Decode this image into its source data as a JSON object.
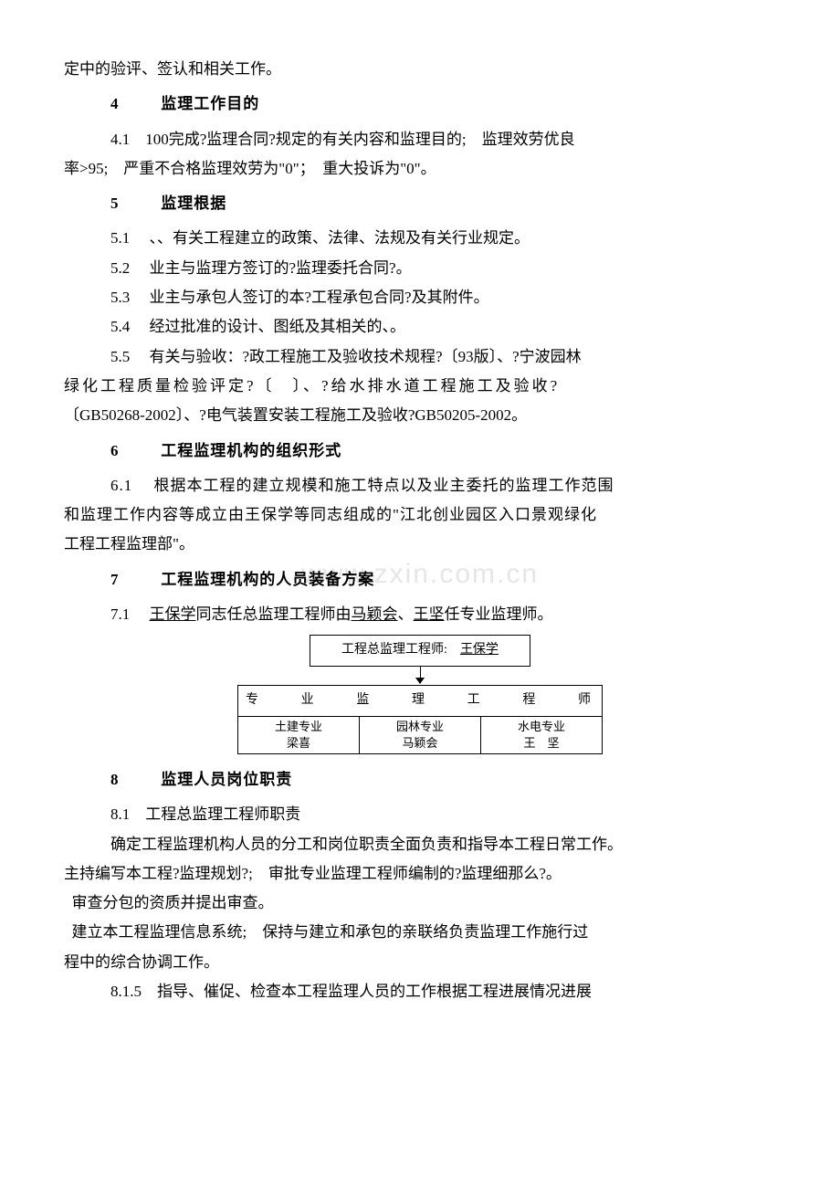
{
  "watermark": "www.zxin.com.cn",
  "para_top": "定中的验评、签认和相关工作。",
  "s4": {
    "num": "4",
    "title": "监理工作目的",
    "p1a": "4.1　100完成?监理合同?规定的有关内容和监理目的;　监理效劳优良",
    "p1b": "率>95;　严重不合格监理效劳为\"0\"；　重大投诉为\"0\"。"
  },
  "s5": {
    "num": "5",
    "title": "监理根据",
    "p1": "5.1　 、、有关工程建立的政策、法律、法规及有关行业规定。",
    "p2": "5.2　 业主与监理方签订的?监理委托合同?。",
    "p3": "5.3　 业主与承包人签订的本?工程承包合同?及其附件。",
    "p4": "5.4　 经过批准的设计、图纸及其相关的、。",
    "p5a": "5.5　 有关与验收：?政工程施工及验收技术规程?〔93版〕、?宁波园林",
    "p5b": "绿化工程质量检验评定?〔　〕、?给水排水道工程施工及验收?",
    "p5c": "〔GB50268-2002〕、?电气装置安装工程施工及验收?GB50205-2002。"
  },
  "s6": {
    "num": "6",
    "title": "工程监理机构的组织形式",
    "p1a": "6.1　 根据本工程的建立规模和施工特点以及业主委托的监理工作范围",
    "p1b": "和监理工作内容等成立由王保学等同志组成的\"江北创业园区入口景观绿化",
    "p1c": "工程工程监理部\"。"
  },
  "s7": {
    "num": "7",
    "title": "工程监理机构的人员装备方案",
    "p1_pre": "7.1　 ",
    "u1": "王保学",
    "p1_mid1": "同志任总监理工程师由",
    "u2": "马颖会",
    "p1_mid2": "、",
    "u3": "王坚",
    "p1_post": "任专业监理师。"
  },
  "org": {
    "top_label": "工程总监理工程师:",
    "top_name": "王保学",
    "header": "专业监理工程师",
    "cells": [
      {
        "dept": "土建专业",
        "name": "梁喜"
      },
      {
        "dept": "园林专业",
        "name": "马颖会"
      },
      {
        "dept": "水电专业",
        "name": "王　坚"
      }
    ]
  },
  "s8": {
    "num": "8",
    "title": "监理人员岗位职责",
    "p1": "8.1　工程总监理工程师职责",
    "p2": "　确定工程监理机构人员的分工和岗位职责全面负责和指导本工程日常工作。",
    "p3": "主持编写本工程?监理规划?;　审批专业监理工程师编制的?监理细那么?。",
    "p4": "审查分包的资质并提出审查。",
    "p5a": "建立本工程监理信息系统;　保持与建立和承包的亲联络负责监理工作施行过",
    "p5b": "程中的综合协调工作。",
    "p6": "8.1.5　指导、催促、检查本工程监理人员的工作根据工程进展情况进展"
  }
}
